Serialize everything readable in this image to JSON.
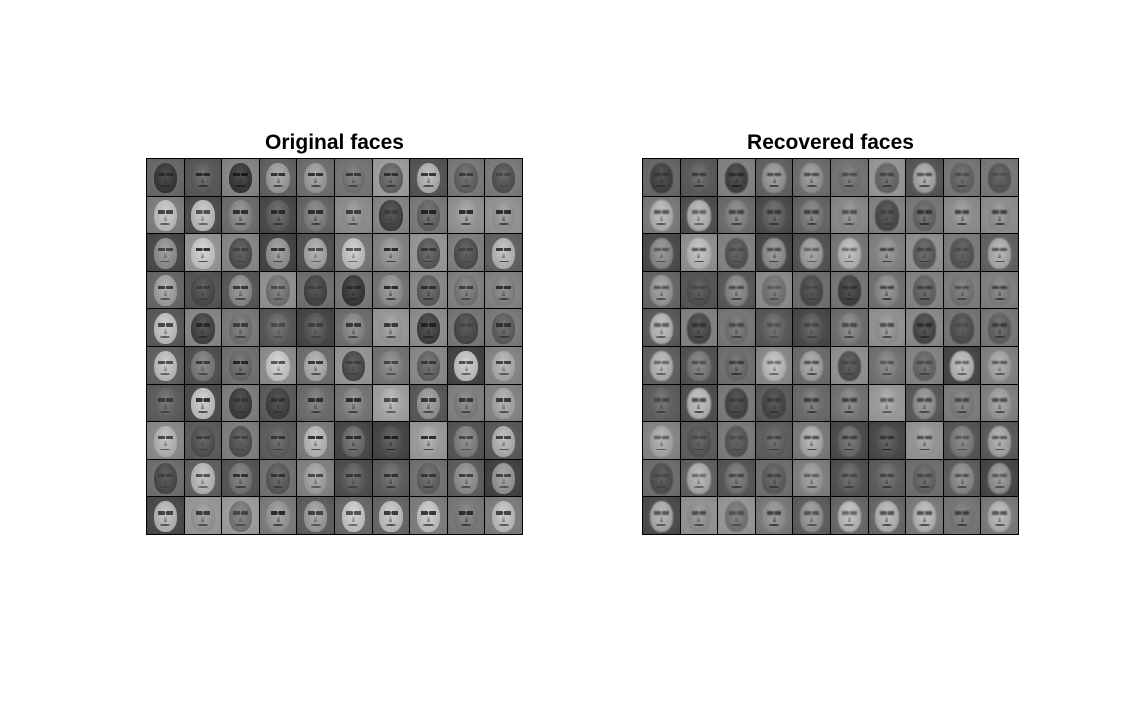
{
  "figure": {
    "panels": [
      {
        "title": "Original faces",
        "grid": {
          "rows": 10,
          "cols": 10
        }
      },
      {
        "title": "Recovered faces",
        "grid": {
          "rows": 10,
          "cols": 10
        }
      }
    ]
  }
}
